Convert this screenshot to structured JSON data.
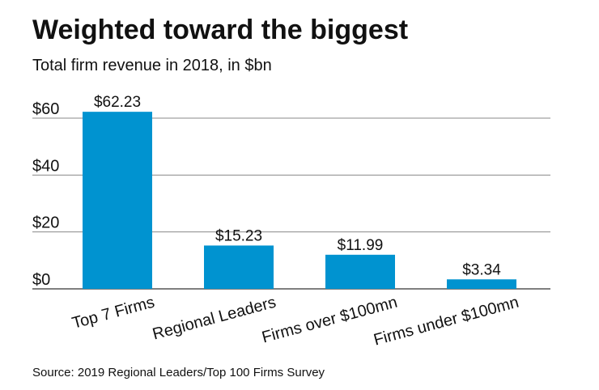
{
  "chart_data": {
    "type": "bar",
    "title": "Weighted toward the biggest",
    "subtitle": "Total firm revenue in 2018, in $bn",
    "categories": [
      "Top 7 Firms",
      "Regional Leaders",
      "Firms over $100mn",
      "Firms under $100mn"
    ],
    "values": [
      62.23,
      15.23,
      11.99,
      3.34
    ],
    "data_labels": [
      "$62.23",
      "$15.23",
      "$11.99",
      "$3.34"
    ],
    "xlabel": "",
    "ylabel": "",
    "ylim": [
      0,
      60
    ],
    "yticks": [
      0,
      20,
      40,
      60
    ],
    "ytick_labels": [
      "$0",
      "$20",
      "$40",
      "$60"
    ],
    "grid": true,
    "bar_color": "#0093D0",
    "source": "Source: 2019 Regional Leaders/Top 100 Firms Survey"
  }
}
